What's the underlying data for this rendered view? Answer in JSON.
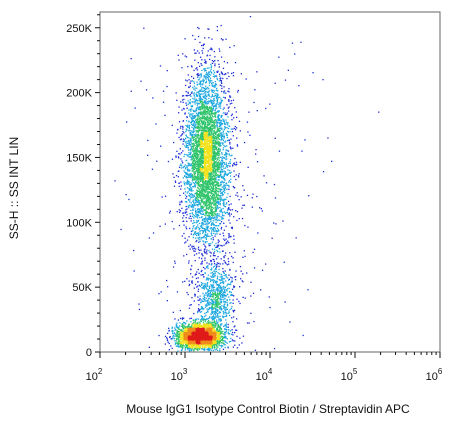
{
  "chart_data": {
    "type": "scatter",
    "subtype": "flow-cytometry-density-dot-plot",
    "xlabel": "Mouse IgG1 Isotype Control Biotin / Streptavidin APC",
    "ylabel": "SS-H :: SS INT LIN",
    "x_scale": "log",
    "xlim": [
      100,
      1000000
    ],
    "x_ticks": [
      {
        "value": 100,
        "base": "10",
        "exp": "2"
      },
      {
        "value": 1000,
        "base": "10",
        "exp": "3"
      },
      {
        "value": 10000,
        "base": "10",
        "exp": "4"
      },
      {
        "value": 100000,
        "base": "10",
        "exp": "5"
      },
      {
        "value": 1000000,
        "base": "10",
        "exp": "6"
      }
    ],
    "y_scale": "linear",
    "ylim": [
      0,
      262144
    ],
    "y_ticks": [
      {
        "value": 0,
        "label": "0"
      },
      {
        "value": 50000,
        "label": "50K"
      },
      {
        "value": 100000,
        "label": "100K"
      },
      {
        "value": 150000,
        "label": "150K"
      },
      {
        "value": 200000,
        "label": "200K"
      },
      {
        "value": 250000,
        "label": "250K"
      }
    ],
    "grid": false,
    "color_scale": [
      "#1f2ed6",
      "#1fa8e0",
      "#2fc46a",
      "#f2e21b",
      "#f08a1c",
      "#e01a1a"
    ],
    "populations": [
      {
        "x_center": 1800,
        "x_log_sd": 0.13,
        "y_center": 150000,
        "y_sd": 34000,
        "count": 4200
      },
      {
        "x_center": 1500,
        "x_log_sd": 0.14,
        "y_center": 12000,
        "y_sd": 5000,
        "count": 2600
      },
      {
        "x_center": 2300,
        "x_log_sd": 0.11,
        "y_center": 42000,
        "y_sd": 13000,
        "count": 700
      },
      {
        "x_center": 2500,
        "x_log_sd": 0.45,
        "y_center": 110000,
        "y_sd": 70000,
        "count": 350
      }
    ],
    "outliers": [
      {
        "x": 150,
        "y": 132000
      },
      {
        "x": 7000,
        "y": 216000
      },
      {
        "x": 42000,
        "y": 210000
      },
      {
        "x": 48000,
        "y": 165000
      },
      {
        "x": 53000,
        "y": 147000
      },
      {
        "x": 190000,
        "y": 185000
      },
      {
        "x": 28000,
        "y": 48000
      },
      {
        "x": 380,
        "y": 88000
      }
    ]
  }
}
